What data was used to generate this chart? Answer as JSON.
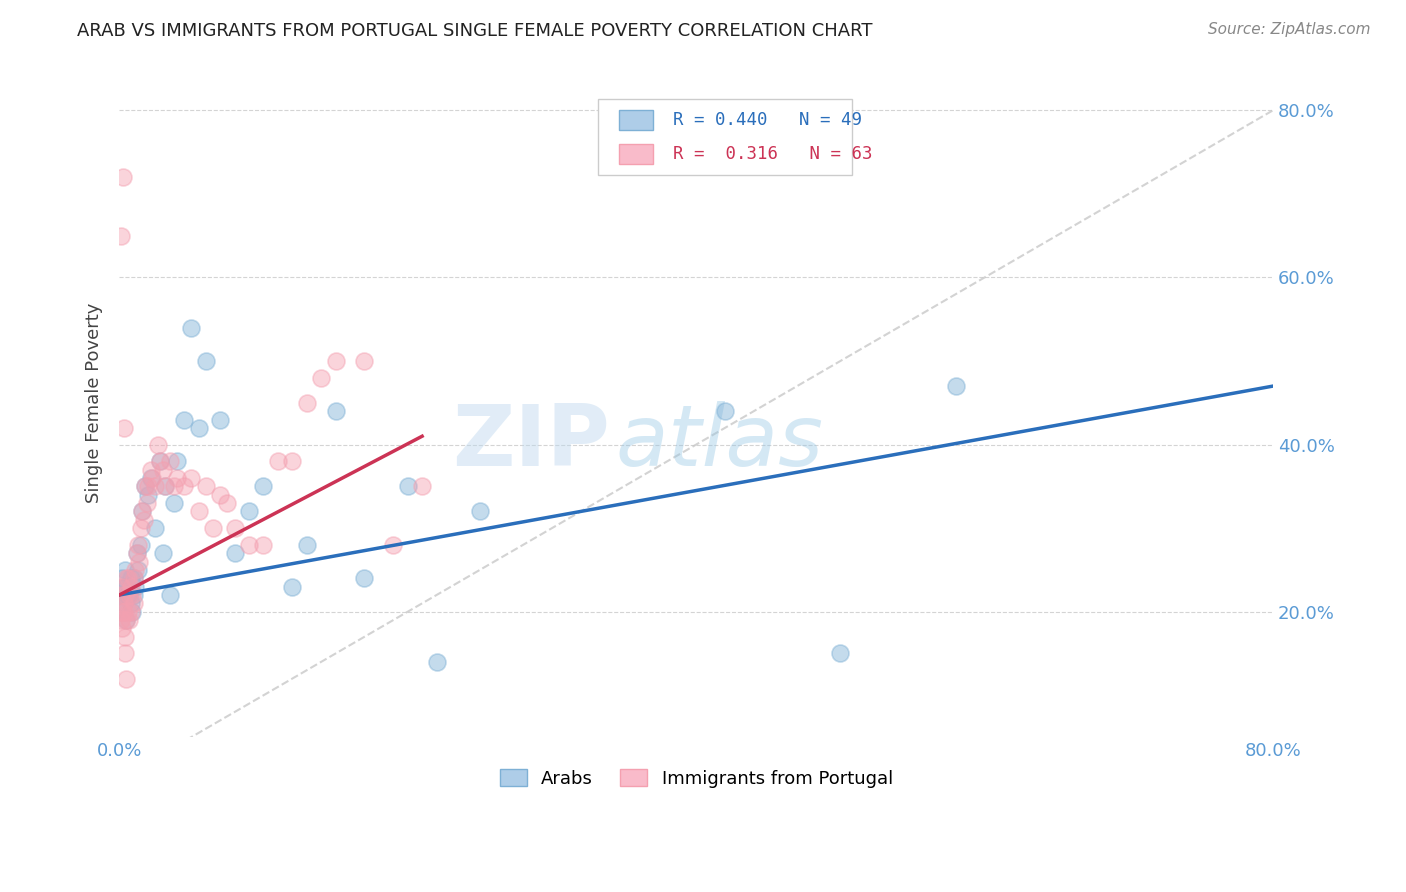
{
  "title": "ARAB VS IMMIGRANTS FROM PORTUGAL SINGLE FEMALE POVERTY CORRELATION CHART",
  "source": "Source: ZipAtlas.com",
  "ylabel": "Single Female Poverty",
  "xlim": [
    0.0,
    0.8
  ],
  "ylim": [
    0.05,
    0.85
  ],
  "blue_color": "#7EB0D5",
  "pink_color": "#F4A0B0",
  "blue_line_color": "#2A6EBB",
  "pink_line_color": "#CC3355",
  "right_axis_color": "#5B9BD5",
  "blue_R": 0.44,
  "blue_N": 49,
  "pink_R": 0.316,
  "pink_N": 63,
  "watermark": "ZIPatlas",
  "legend_label_blue": "Arabs",
  "legend_label_pink": "Immigrants from Portugal",
  "blue_scatter_x": [
    0.001,
    0.002,
    0.002,
    0.003,
    0.003,
    0.004,
    0.004,
    0.005,
    0.005,
    0.006,
    0.007,
    0.008,
    0.008,
    0.009,
    0.01,
    0.01,
    0.011,
    0.012,
    0.013,
    0.015,
    0.016,
    0.018,
    0.02,
    0.022,
    0.025,
    0.028,
    0.03,
    0.032,
    0.035,
    0.038,
    0.04,
    0.045,
    0.05,
    0.055,
    0.06,
    0.07,
    0.08,
    0.09,
    0.1,
    0.12,
    0.13,
    0.15,
    0.17,
    0.2,
    0.22,
    0.25,
    0.42,
    0.5,
    0.58
  ],
  "blue_scatter_y": [
    0.22,
    0.24,
    0.2,
    0.23,
    0.21,
    0.25,
    0.22,
    0.19,
    0.23,
    0.22,
    0.22,
    0.24,
    0.21,
    0.2,
    0.22,
    0.24,
    0.23,
    0.27,
    0.25,
    0.28,
    0.32,
    0.35,
    0.34,
    0.36,
    0.3,
    0.38,
    0.27,
    0.35,
    0.22,
    0.33,
    0.38,
    0.43,
    0.54,
    0.42,
    0.5,
    0.43,
    0.27,
    0.32,
    0.35,
    0.23,
    0.28,
    0.44,
    0.24,
    0.35,
    0.14,
    0.32,
    0.44,
    0.15,
    0.47
  ],
  "pink_scatter_x": [
    0.001,
    0.001,
    0.002,
    0.002,
    0.002,
    0.003,
    0.003,
    0.004,
    0.004,
    0.005,
    0.005,
    0.006,
    0.006,
    0.007,
    0.007,
    0.008,
    0.008,
    0.009,
    0.01,
    0.01,
    0.011,
    0.012,
    0.013,
    0.014,
    0.015,
    0.016,
    0.017,
    0.018,
    0.019,
    0.02,
    0.022,
    0.023,
    0.025,
    0.027,
    0.028,
    0.03,
    0.032,
    0.035,
    0.038,
    0.04,
    0.045,
    0.05,
    0.055,
    0.06,
    0.065,
    0.07,
    0.075,
    0.08,
    0.09,
    0.1,
    0.11,
    0.12,
    0.13,
    0.14,
    0.15,
    0.17,
    0.19,
    0.21,
    0.0015,
    0.0025,
    0.003,
    0.004,
    0.005
  ],
  "pink_scatter_y": [
    0.22,
    0.19,
    0.2,
    0.23,
    0.18,
    0.21,
    0.2,
    0.22,
    0.17,
    0.24,
    0.19,
    0.2,
    0.24,
    0.22,
    0.19,
    0.23,
    0.2,
    0.22,
    0.24,
    0.21,
    0.25,
    0.27,
    0.28,
    0.26,
    0.3,
    0.32,
    0.31,
    0.35,
    0.33,
    0.35,
    0.37,
    0.36,
    0.35,
    0.4,
    0.38,
    0.37,
    0.35,
    0.38,
    0.35,
    0.36,
    0.35,
    0.36,
    0.32,
    0.35,
    0.3,
    0.34,
    0.33,
    0.3,
    0.28,
    0.28,
    0.38,
    0.38,
    0.45,
    0.48,
    0.5,
    0.5,
    0.28,
    0.35,
    0.65,
    0.72,
    0.42,
    0.15,
    0.12
  ],
  "blue_line_x0": 0.0,
  "blue_line_y0": 0.22,
  "blue_line_x1": 0.8,
  "blue_line_y1": 0.47,
  "pink_line_x0": 0.0,
  "pink_line_y0": 0.22,
  "pink_line_x1": 0.21,
  "pink_line_y1": 0.41
}
